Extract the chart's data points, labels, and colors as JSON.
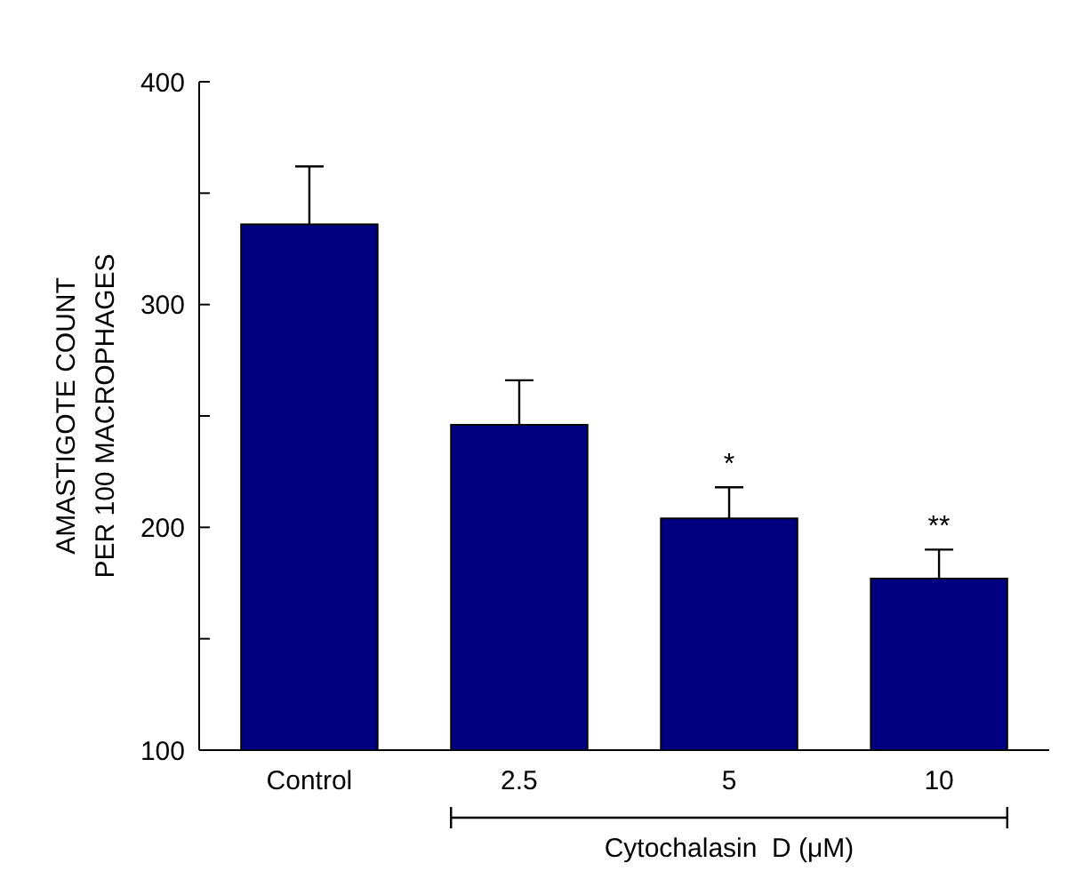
{
  "chart_data": {
    "type": "bar",
    "ylabel": "AMASTIGOTE COUNT\nPER 100 MACROPHAGES",
    "xlabel": "Cytochalasin  D (μM)",
    "categories": [
      "Control",
      "2.5",
      "5",
      "10"
    ],
    "values": [
      336,
      246,
      204,
      177
    ],
    "errors": [
      [
        336,
        362
      ],
      [
        246,
        266
      ],
      [
        204,
        218
      ],
      [
        177,
        190
      ]
    ],
    "color": "#000080",
    "ylim": [
      100,
      400
    ],
    "yticks": [
      100,
      {
        "value": 150,
        "label": null
      },
      200,
      {
        "value": 250,
        "label": null
      },
      300,
      {
        "value": 350,
        "label": null
      },
      400
    ],
    "annotations": [
      {
        "text": "*",
        "x": "5",
        "y": 218
      },
      {
        "text": "**",
        "x": "10",
        "y": 190
      }
    ],
    "grid": false
  }
}
